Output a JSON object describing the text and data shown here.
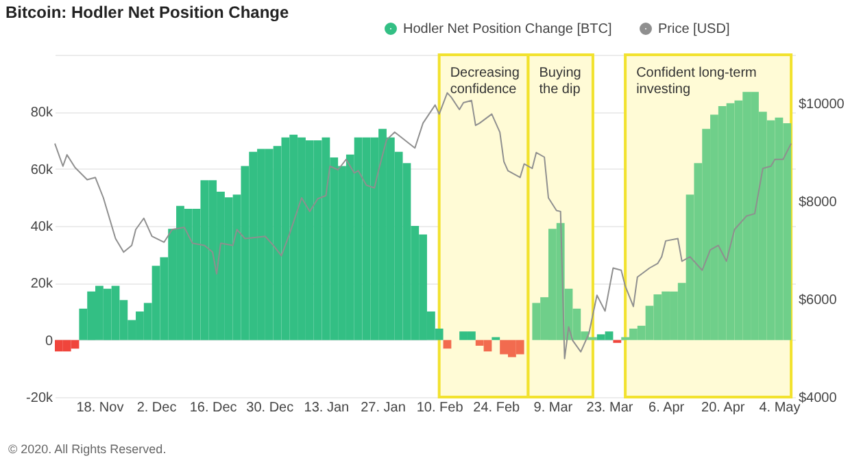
{
  "chart_data": {
    "type": "bar",
    "title": "Bitcoin: Hodler Net Position Change",
    "annotations": [
      "© 2020. All Rights Reserved."
    ],
    "xlim": [
      "2019-11-07",
      "2020-05-08"
    ],
    "xticks": [
      {
        "value": "2019-11-18",
        "label": "18. Nov"
      },
      {
        "value": "2019-12-02",
        "label": "2. Dec"
      },
      {
        "value": "2019-12-16",
        "label": "16. Dec"
      },
      {
        "value": "2019-12-30",
        "label": "30. Dec"
      },
      {
        "value": "2020-01-13",
        "label": "13. Jan"
      },
      {
        "value": "2020-01-27",
        "label": "27. Jan"
      },
      {
        "value": "2020-02-10",
        "label": "10. Feb"
      },
      {
        "value": "2020-02-24",
        "label": "24. Feb"
      },
      {
        "value": "2020-03-09",
        "label": "9. Mar"
      },
      {
        "value": "2020-03-23",
        "label": "23. Mar"
      },
      {
        "value": "2020-04-06",
        "label": "6. Apr"
      },
      {
        "value": "2020-04-20",
        "label": "20. Apr"
      },
      {
        "value": "2020-05-04",
        "label": "4. May"
      }
    ],
    "ylim": [
      -20000,
      100000
    ],
    "yticks": [
      {
        "value": -20000,
        "label": "-20k"
      },
      {
        "value": 0,
        "label": "0"
      },
      {
        "value": 20000,
        "label": "20k"
      },
      {
        "value": 40000,
        "label": "40k"
      },
      {
        "value": 60000,
        "label": "60k"
      },
      {
        "value": 80000,
        "label": "80k"
      },
      {
        "value": 100000,
        "label": null
      }
    ],
    "y2lim": [
      4000,
      11000
    ],
    "y2ticks": [
      {
        "value": 4000,
        "label": "$4000"
      },
      {
        "value": 6000,
        "label": "$6000"
      },
      {
        "value": 8000,
        "label": "$8000"
      },
      {
        "value": 10000,
        "label": "$10000"
      }
    ],
    "grid": "y",
    "legend": "top right",
    "bands": [
      {
        "axis": "x",
        "from": "2020-02-10",
        "to": "2020-03-03",
        "label": "Decreasing confidence",
        "color": "#fffbd6"
      },
      {
        "axis": "x",
        "from": "2020-03-03",
        "to": "2020-03-19",
        "label": "Buying the dip",
        "color": "#fffbd6"
      },
      {
        "axis": "x",
        "from": "2020-03-27",
        "to": "2020-05-07",
        "label": "Confident long-term investing",
        "color": "#fffbd6"
      }
    ],
    "series": [
      {
        "name": "Hodler Net Position Change [BTC]",
        "color": "#33bf84",
        "x": [
          "2019-11-08",
          "2019-11-10",
          "2019-11-12",
          "2019-11-14",
          "2019-11-16",
          "2019-11-18",
          "2019-11-20",
          "2019-11-22",
          "2019-11-24",
          "2019-11-26",
          "2019-11-28",
          "2019-11-30",
          "2019-12-02",
          "2019-12-04",
          "2019-12-06",
          "2019-12-08",
          "2019-12-10",
          "2019-12-12",
          "2019-12-14",
          "2019-12-16",
          "2019-12-18",
          "2019-12-20",
          "2019-12-22",
          "2019-12-24",
          "2019-12-26",
          "2019-12-28",
          "2019-12-30",
          "2020-01-01",
          "2020-01-03",
          "2020-01-05",
          "2020-01-07",
          "2020-01-09",
          "2020-01-11",
          "2020-01-13",
          "2020-01-15",
          "2020-01-17",
          "2020-01-19",
          "2020-01-21",
          "2020-01-23",
          "2020-01-25",
          "2020-01-27",
          "2020-01-29",
          "2020-01-31",
          "2020-02-02",
          "2020-02-04",
          "2020-02-06",
          "2020-02-08",
          "2020-02-10",
          "2020-02-12",
          "2020-02-14",
          "2020-02-16",
          "2020-02-18",
          "2020-02-20",
          "2020-02-22",
          "2020-02-24",
          "2020-02-26",
          "2020-02-28",
          "2020-03-01",
          "2020-03-03",
          "2020-03-05",
          "2020-03-07",
          "2020-03-09",
          "2020-03-11",
          "2020-03-13",
          "2020-03-15",
          "2020-03-17",
          "2020-03-19",
          "2020-03-21",
          "2020-03-23",
          "2020-03-25",
          "2020-03-27",
          "2020-03-29",
          "2020-03-31",
          "2020-04-02",
          "2020-04-04",
          "2020-04-06",
          "2020-04-08",
          "2020-04-10",
          "2020-04-12",
          "2020-04-14",
          "2020-04-16",
          "2020-04-18",
          "2020-04-20",
          "2020-04-22",
          "2020-04-24",
          "2020-04-26",
          "2020-04-28",
          "2020-04-30",
          "2020-05-02",
          "2020-05-04",
          "2020-05-06"
        ],
        "values": [
          -4000,
          -4000,
          -3000,
          11000,
          17000,
          19000,
          18000,
          19000,
          14000,
          7000,
          10000,
          13000,
          26000,
          29000,
          39000,
          47000,
          46000,
          46000,
          56000,
          56000,
          52000,
          50000,
          51000,
          61000,
          66000,
          67000,
          67000,
          68000,
          71000,
          72000,
          71000,
          70000,
          70000,
          71000,
          64000,
          61000,
          65000,
          71000,
          71000,
          71000,
          74000,
          71000,
          66000,
          62000,
          40000,
          37000,
          10000,
          4000,
          -3000,
          0,
          3000,
          3000,
          -2000,
          -4000,
          1000,
          -5000,
          -6000,
          -5000,
          0,
          13000,
          15000,
          39000,
          41000,
          18000,
          11000,
          3000,
          1000,
          2000,
          3000,
          -1000,
          1000,
          4000,
          5000,
          12000,
          16000,
          17000,
          17000,
          20000,
          51000,
          62000,
          74000,
          79000,
          82000,
          83000,
          84000,
          87000,
          87000,
          80000,
          77000,
          78000,
          76000
        ],
        "colors": [
          "#f0453c",
          "#f0453c",
          "#f0453c",
          "#33bf84",
          "#33bf84",
          "#33bf84",
          "#33bf84",
          "#33bf84",
          "#33bf84",
          "#33bf84",
          "#33bf84",
          "#33bf84",
          "#33bf84",
          "#33bf84",
          "#33bf84",
          "#33bf84",
          "#33bf84",
          "#33bf84",
          "#33bf84",
          "#33bf84",
          "#33bf84",
          "#33bf84",
          "#33bf84",
          "#33bf84",
          "#33bf84",
          "#33bf84",
          "#33bf84",
          "#33bf84",
          "#33bf84",
          "#33bf84",
          "#33bf84",
          "#33bf84",
          "#33bf84",
          "#33bf84",
          "#33bf84",
          "#33bf84",
          "#33bf84",
          "#33bf84",
          "#33bf84",
          "#33bf84",
          "#33bf84",
          "#33bf84",
          "#33bf84",
          "#33bf84",
          "#33bf84",
          "#33bf84",
          "#33bf84",
          "#33bf84",
          "#f26b4f",
          "#f26b4f",
          "#33bf84",
          "#33bf84",
          "#f26b4f",
          "#f26b4f",
          "#33bf84",
          "#f26b4f",
          "#f26b4f",
          "#f26b4f",
          "#6fcf8a",
          "#6fcf8a",
          "#6fcf8a",
          "#6fcf8a",
          "#6fcf8a",
          "#6fcf8a",
          "#6fcf8a",
          "#6fcf8a",
          "#6fcf8a",
          "#33bf84",
          "#33bf84",
          "#f0453c",
          "#6fcf8a",
          "#6fcf8a",
          "#6fcf8a",
          "#6fcf8a",
          "#6fcf8a",
          "#6fcf8a",
          "#6fcf8a",
          "#6fcf8a",
          "#6fcf8a",
          "#6fcf8a",
          "#6fcf8a",
          "#6fcf8a",
          "#6fcf8a",
          "#6fcf8a",
          "#6fcf8a",
          "#6fcf8a",
          "#6fcf8a",
          "#6fcf8a",
          "#6fcf8a",
          "#6fcf8a",
          "#6fcf8a"
        ]
      },
      {
        "name": "Price [USD]",
        "type": "line",
        "axis": "y2",
        "color": "#8f8f8f",
        "x": [
          "2019-11-07",
          "2019-11-09",
          "2019-11-10",
          "2019-11-12",
          "2019-11-15",
          "2019-11-17",
          "2019-11-19",
          "2019-11-22",
          "2019-11-24",
          "2019-11-26",
          "2019-11-27",
          "2019-11-29",
          "2019-12-01",
          "2019-12-04",
          "2019-12-06",
          "2019-12-09",
          "2019-12-11",
          "2019-12-14",
          "2019-12-16",
          "2019-12-17",
          "2019-12-18",
          "2019-12-21",
          "2019-12-22",
          "2019-12-24",
          "2019-12-29",
          "2019-12-31",
          "2020-01-02",
          "2020-01-04",
          "2020-01-07",
          "2020-01-09",
          "2020-01-11",
          "2020-01-13",
          "2020-01-14",
          "2020-01-16",
          "2020-01-18",
          "2020-01-20",
          "2020-01-21",
          "2020-01-23",
          "2020-01-25",
          "2020-01-26",
          "2020-01-28",
          "2020-01-30",
          "2020-02-04",
          "2020-02-06",
          "2020-02-09",
          "2020-02-10",
          "2020-02-12",
          "2020-02-13",
          "2020-02-15",
          "2020-02-16",
          "2020-02-18",
          "2020-02-19",
          "2020-02-20",
          "2020-02-23",
          "2020-02-25",
          "2020-02-26",
          "2020-02-27",
          "2020-03-01",
          "2020-03-02",
          "2020-03-04",
          "2020-03-05",
          "2020-03-07",
          "2020-03-08",
          "2020-03-10",
          "2020-03-11",
          "2020-03-12",
          "2020-03-13",
          "2020-03-14",
          "2020-03-16",
          "2020-03-18",
          "2020-03-20",
          "2020-03-22",
          "2020-03-24",
          "2020-03-26",
          "2020-03-27",
          "2020-03-29",
          "2020-03-30",
          "2020-04-02",
          "2020-04-04",
          "2020-04-05",
          "2020-04-06",
          "2020-04-09",
          "2020-04-10",
          "2020-04-12",
          "2020-04-15",
          "2020-04-17",
          "2020-04-19",
          "2020-04-21",
          "2020-04-23",
          "2020-04-26",
          "2020-04-28",
          "2020-04-30",
          "2020-05-02",
          "2020-05-03",
          "2020-05-05",
          "2020-05-07"
        ],
        "values": [
          9185,
          8722,
          8954,
          8694,
          8444,
          8491,
          8074,
          7241,
          6963,
          7102,
          7426,
          7657,
          7287,
          7167,
          7426,
          7472,
          7148,
          7102,
          6963,
          6519,
          7148,
          7102,
          7426,
          7241,
          7287,
          7102,
          6889,
          7333,
          8074,
          7796,
          8056,
          8120,
          8722,
          8648,
          8861,
          8583,
          8630,
          8333,
          8278,
          8630,
          9259,
          9417,
          9093,
          9602,
          9972,
          9787,
          10222,
          10130,
          9880,
          10019,
          10065,
          9556,
          9602,
          9787,
          9417,
          8815,
          8630,
          8491,
          8768,
          8676,
          9000,
          8907,
          8074,
          7815,
          7796,
          4787,
          5435,
          5157,
          4926,
          5296,
          6083,
          5759,
          6639,
          6593,
          6269,
          5852,
          6454,
          6639,
          6731,
          6870,
          7194,
          7241,
          6778,
          6870,
          6593,
          7009,
          7102,
          6778,
          7426,
          7704,
          7750,
          8676,
          8722,
          8861,
          8861,
          9185
        ]
      }
    ]
  }
}
